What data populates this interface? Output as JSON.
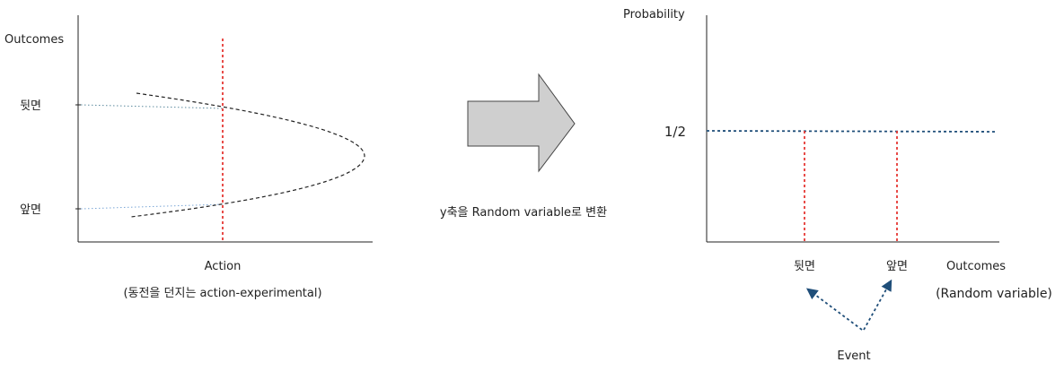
{
  "left_panel": {
    "y_label": "Outcomes",
    "tick_top": "뒷면",
    "tick_bottom": "앞면",
    "x_label": "Action",
    "caption": "(동전을 던지는 action-experimental)"
  },
  "transform": {
    "label": "y축을 Random variable로 변환"
  },
  "right_panel": {
    "y_label": "Probability",
    "y_tick": "1/2",
    "x_tick_1": "뒷면",
    "x_tick_2": "앞면",
    "x_label": "Outcomes",
    "x_sublabel": "(Random variable)",
    "event_label": "Event"
  },
  "colors": {
    "axis": "#222222",
    "curve": "#222222",
    "red_dotted": "#e53935",
    "blue_dotted": "#1f4e79",
    "light_blue_dotted": "#7aa6d6",
    "arrow_fill": "#cfcfcf",
    "arrow_stroke": "#444444"
  }
}
